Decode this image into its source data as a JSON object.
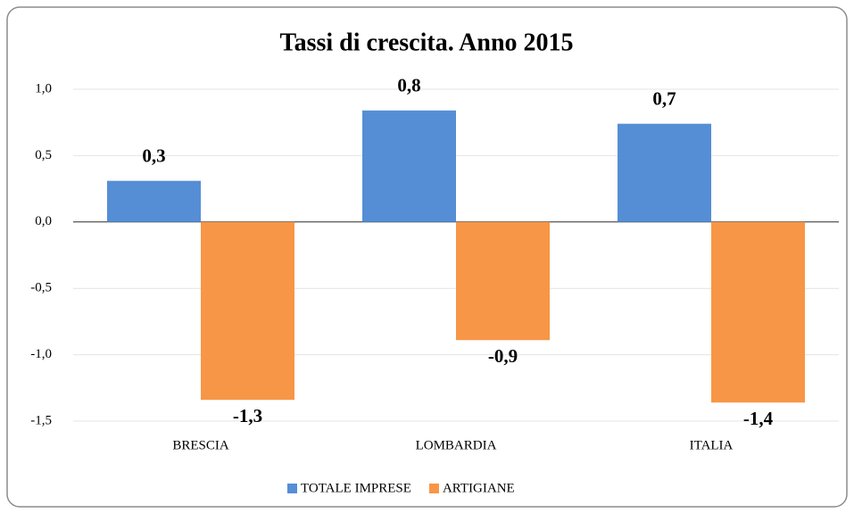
{
  "chart_data": {
    "type": "bar",
    "title": "Tassi di crescita. Anno 2015",
    "categories": [
      "BRESCIA",
      "LOMBARDIA",
      "ITALIA"
    ],
    "series": [
      {
        "name": "TOTALE IMPRESE",
        "color": "#558ed5",
        "values": [
          0.31,
          0.84,
          0.74
        ],
        "value_labels": [
          "0,3",
          "0,8",
          "0,7"
        ]
      },
      {
        "name": "ARTIGIANE",
        "color": "#f79646",
        "values": [
          -1.34,
          -0.89,
          -1.36
        ],
        "value_labels": [
          "-1,3",
          "-0,9",
          "-1,4"
        ]
      }
    ],
    "ylim": [
      -1.5,
      1.0
    ],
    "yticks": [
      {
        "value": -1.5,
        "label": "-1,5"
      },
      {
        "value": -1.0,
        "label": "-1,0"
      },
      {
        "value": -0.5,
        "label": "-0,5"
      },
      {
        "value": 0,
        "label": "0,0"
      },
      {
        "value": 0.5,
        "label": "0,5"
      },
      {
        "value": 1.0,
        "label": "1,0"
      }
    ],
    "grid": true,
    "legend": "bottom"
  }
}
